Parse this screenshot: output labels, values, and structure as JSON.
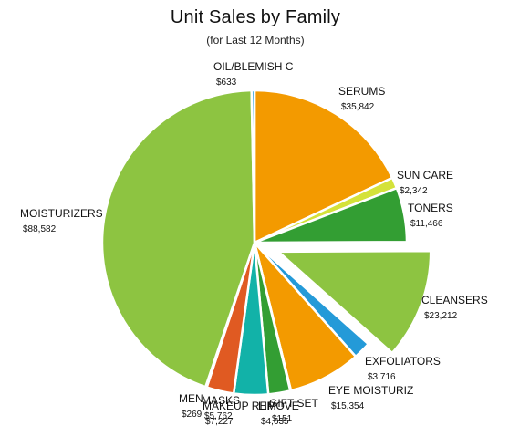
{
  "chart_data": {
    "type": "pie",
    "title": "Unit Sales by Family",
    "subtitle": "(for Last 12 Months)",
    "slices": [
      {
        "label": "SERUMS",
        "value_label": "$35,842",
        "value": 35842,
        "color": "#f39a00",
        "exploded": false
      },
      {
        "label": "SUN CARE",
        "value_label": "$2,342",
        "value": 2342,
        "color": "#d4e23a",
        "exploded": false
      },
      {
        "label": "TONERS",
        "value_label": "$11,466",
        "value": 11466,
        "color": "#339e33",
        "exploded": false
      },
      {
        "label": "CLEANSERS",
        "value_label": "$23,212",
        "value": 23212,
        "color": "#8dc441",
        "exploded": true
      },
      {
        "label": "EXFOLIATORS",
        "value_label": "$3,716",
        "value": 3716,
        "color": "#249ad8",
        "exploded": false
      },
      {
        "label": "EYE MOISTURIZ",
        "value_label": "$15,354",
        "value": 15354,
        "color": "#f39a00",
        "exploded": false
      },
      {
        "label": "GIFT SET",
        "value_label": "$151",
        "value": 151,
        "color": "#1f8fc8",
        "exploded": false
      },
      {
        "label": "LIP",
        "value_label": "$4,635",
        "value": 4635,
        "color": "#339e33",
        "exploded": false
      },
      {
        "label": "MAKEUP REMOVE",
        "value_label": "$7,227",
        "value": 7227,
        "color": "#12b2a8",
        "exploded": false
      },
      {
        "label": "MASKS",
        "value_label": "$5,762",
        "value": 5762,
        "color": "#e05a22",
        "exploded": false
      },
      {
        "label": "MEN",
        "value_label": "$269",
        "value": 269,
        "color": "#d4e23a",
        "exploded": false
      },
      {
        "label": "MOISTURIZERS",
        "value_label": "$88,582",
        "value": 88582,
        "color": "#8dc441",
        "exploded": false
      },
      {
        "label": "OIL/BLEMISH C",
        "value_label": "$633",
        "value": 633,
        "color": "#249ad8",
        "exploded": false
      }
    ]
  }
}
